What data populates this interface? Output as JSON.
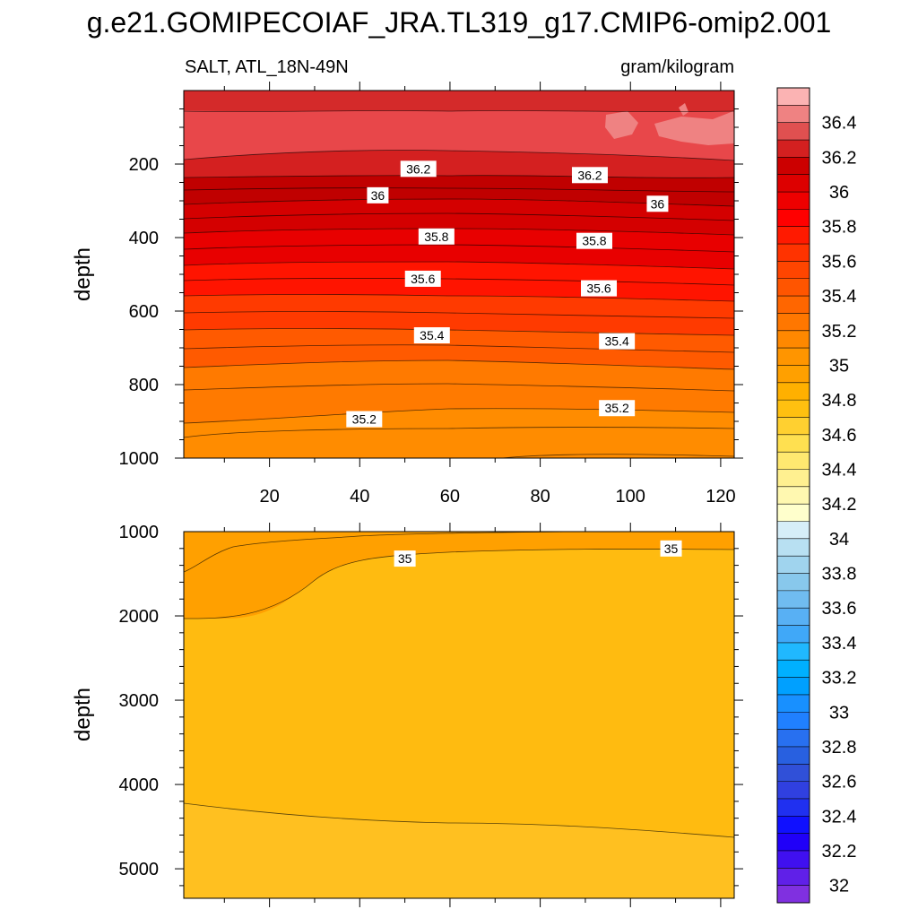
{
  "chart_data": {
    "type": "contour",
    "title": "g.e21.GOMIPECOIAF_JRA.TL319_g17.CMIP6-omip2.001",
    "variable": "SALT, ATL_18N-49N",
    "units": "gram/kilogram",
    "panels": [
      {
        "name": "upper",
        "ylabel": "depth",
        "xlim": [
          1,
          123
        ],
        "ylim": [
          1000,
          0
        ],
        "xticks": [
          20,
          40,
          60,
          80,
          100,
          120
        ],
        "yticks": [
          200,
          400,
          600,
          800,
          1000
        ],
        "contour_labels": [
          {
            "text": "36.2",
            "x": 53,
            "depth": 213
          },
          {
            "text": "36.2",
            "x": 91,
            "depth": 230
          },
          {
            "text": "36",
            "x": 44,
            "depth": 285
          },
          {
            "text": "36",
            "x": 106,
            "depth": 308
          },
          {
            "text": "35.8",
            "x": 57,
            "depth": 397
          },
          {
            "text": "35.8",
            "x": 92,
            "depth": 409
          },
          {
            "text": "35.6",
            "x": 54,
            "depth": 512
          },
          {
            "text": "35.6",
            "x": 93,
            "depth": 538
          },
          {
            "text": "35.4",
            "x": 56,
            "depth": 666
          },
          {
            "text": "35.4",
            "x": 97,
            "depth": 682
          },
          {
            "text": "35.2",
            "x": 41,
            "depth": 894
          },
          {
            "text": "35.2",
            "x": 97,
            "depth": 864
          }
        ]
      },
      {
        "name": "lower",
        "ylabel": "depth",
        "xlim": [
          1,
          123
        ],
        "ylim": [
          5350,
          1000
        ],
        "yticks": [
          1000,
          2000,
          3000,
          4000,
          5000
        ],
        "contour_labels": [
          {
            "text": "35",
            "x": 50,
            "depth": 1320
          },
          {
            "text": "35",
            "x": 109,
            "depth": 1200
          }
        ]
      }
    ],
    "colorbar": {
      "labels": [
        "36.4",
        "36.2",
        "36",
        "35.8",
        "35.6",
        "35.4",
        "35.2",
        "35",
        "34.8",
        "34.6",
        "34.4",
        "34.2",
        "34",
        "33.8",
        "33.6",
        "33.4",
        "33.2",
        "33",
        "32.8",
        "32.6",
        "32.4",
        "32.2",
        "32"
      ],
      "colors": [
        "#fbb3b3",
        "#ef8282",
        "#e05050",
        "#d42020",
        "#cc0000",
        "#dd0000",
        "#ee0000",
        "#ff0000",
        "#ff1a00",
        "#ff3300",
        "#ff4500",
        "#ff5500",
        "#ff6600",
        "#ff7700",
        "#ff8800",
        "#ff9500",
        "#ffa000",
        "#ffb000",
        "#ffc010",
        "#ffd030",
        "#ffe050",
        "#ffe870",
        "#fff090",
        "#fff8b0",
        "#ffffcc",
        "#d6eef8",
        "#b8e0f2",
        "#a0d4ee",
        "#88c8ec",
        "#70bcf0",
        "#58b0f4",
        "#40a8f8",
        "#20b8ff",
        "#00b0ff",
        "#00a0ff",
        "#1890ff",
        "#2080ff",
        "#2870f0",
        "#2860e0",
        "#3050d8",
        "#3040e0",
        "#2030f0",
        "#1010ff",
        "#2000f8",
        "#4010f0",
        "#6020e8",
        "#8030e0"
      ]
    }
  }
}
